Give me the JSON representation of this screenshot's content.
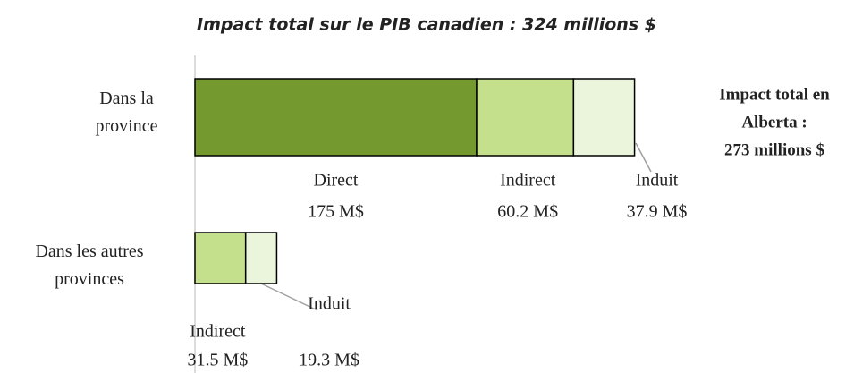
{
  "chart_data": {
    "type": "bar",
    "orientation": "horizontal",
    "stacked": true,
    "title": "Impact total sur le PIB canadien : 324 millions $",
    "categories": [
      "Dans la province",
      "Dans les autres provinces"
    ],
    "series": [
      {
        "name": "Direct",
        "color": "#74992e",
        "values": [
          175,
          null
        ],
        "value_labels": [
          "175 M$",
          null
        ]
      },
      {
        "name": "Indirect",
        "color": "#c5e08c",
        "values": [
          60.2,
          31.5
        ],
        "value_labels": [
          "60.2 M$",
          "31.5 M$"
        ]
      },
      {
        "name": "Induit",
        "color": "#ebf5dc",
        "values": [
          37.9,
          19.3
        ],
        "value_labels": [
          "37.9 M$",
          "19.3 M$"
        ]
      }
    ],
    "annotation": [
      "Impact total en",
      "Alberta :",
      "273 millions $"
    ]
  }
}
